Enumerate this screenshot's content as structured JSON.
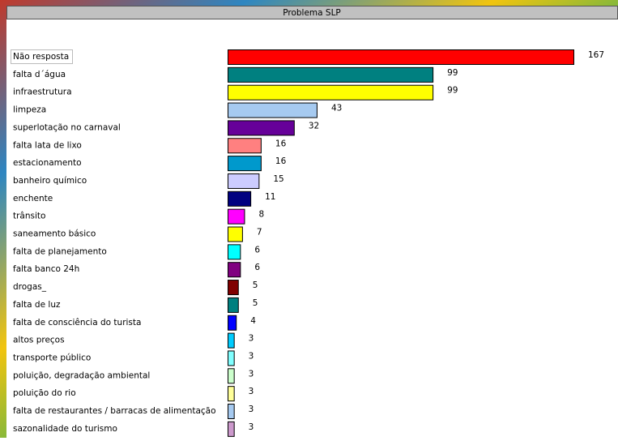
{
  "chart_data": {
    "type": "bar",
    "orientation": "horizontal",
    "title": "Problema SLP",
    "categories": [
      "Não resposta",
      "falta d´água",
      "infraestrutura",
      "limpeza",
      "superlotação no carnaval",
      "falta lata de lixo",
      "estacionamento",
      "banheiro químico",
      "enchente",
      "trânsito",
      "saneamento básico",
      "falta de planejamento",
      "falta banco 24h",
      "drogas_",
      "falta de luz",
      "falta de consciência do turista",
      "altos preços",
      "transporte público",
      "poluição, degradação ambiental",
      "poluição do rio",
      "falta de restaurantes / barracas de alimentação",
      "sazonalidade do turismo"
    ],
    "values": [
      167,
      99,
      99,
      43,
      32,
      16,
      16,
      15,
      11,
      8,
      7,
      6,
      6,
      5,
      5,
      4,
      3,
      3,
      3,
      3,
      3,
      3
    ],
    "colors": [
      "#ff0000",
      "#008080",
      "#ffff00",
      "#a6caf0",
      "#660099",
      "#ff8080",
      "#0099cc",
      "#ccccff",
      "#000080",
      "#ff00ff",
      "#ffff00",
      "#00ffff",
      "#800080",
      "#800000",
      "#008080",
      "#0000ff",
      "#00ccff",
      "#80ffff",
      "#ccffcc",
      "#ffff99",
      "#a6caf0",
      "#cc99cc"
    ]
  }
}
